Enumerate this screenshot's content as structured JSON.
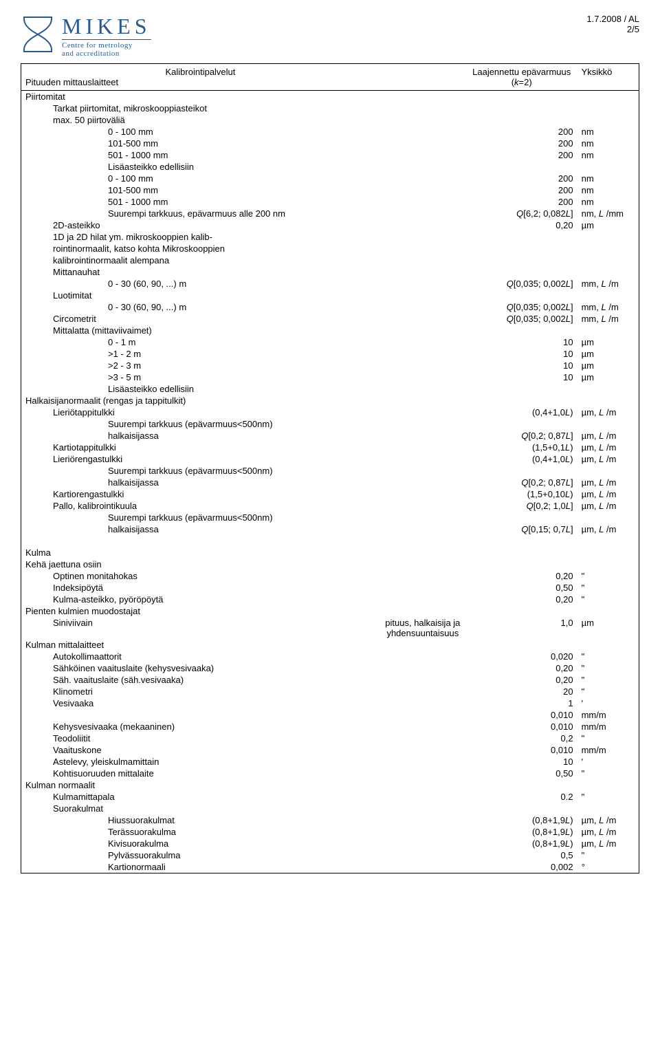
{
  "header": {
    "logo_main": "MIKES",
    "logo_sub1": "Centre for metrology",
    "logo_sub2": "and accreditation",
    "date": "1.7.2008 / AL",
    "page": "2/5"
  },
  "table_header": {
    "left_top": "Kalibrointipalvelut",
    "left_bottom": "Pituuden mittauslaitteet",
    "right_top": "Laajennettu epävarmuus",
    "right_sub": "(k=2)",
    "unit_col": "Yksikkö"
  },
  "sections": [
    {
      "type": "group",
      "text": "Piirtomitat"
    },
    {
      "type": "sub",
      "indent": 1,
      "text": "Tarkat piirtomitat, mikroskooppiasteikot"
    },
    {
      "type": "sub",
      "indent": 1,
      "text": "max. 50 piirtoväliä"
    },
    {
      "type": "row",
      "indent": 3,
      "desc": "0 - 100 mm",
      "val": "200",
      "unit": "nm"
    },
    {
      "type": "row",
      "indent": 3,
      "desc": "101-500 mm",
      "val": "200",
      "unit": "nm"
    },
    {
      "type": "row",
      "indent": 3,
      "desc": "501 - 1000 mm",
      "val": "200",
      "unit": "nm"
    },
    {
      "type": "sub",
      "indent": 3,
      "text": "Lisäasteikko edellisiin"
    },
    {
      "type": "row",
      "indent": 3,
      "desc": "0 - 100 mm",
      "val": "200",
      "unit": "nm"
    },
    {
      "type": "row",
      "indent": 3,
      "desc": "101-500 mm",
      "val": "200",
      "unit": "nm"
    },
    {
      "type": "row",
      "indent": 3,
      "desc": "501 - 1000 mm",
      "val": "200",
      "unit": "nm"
    },
    {
      "type": "row",
      "indent": 3,
      "desc": "Suurempi tarkkuus, epävarmuus alle 200 nm",
      "val": "Q[6,2; 0,082L]",
      "unit": "nm, L /mm",
      "ital": true
    },
    {
      "type": "row",
      "indent": 1,
      "desc": "2D-asteikko",
      "val": "0,20",
      "unit": "µm"
    },
    {
      "type": "sub",
      "indent": 1,
      "text": "1D ja 2D hilat ym. mikroskooppien kalib-"
    },
    {
      "type": "sub",
      "indent": 1,
      "text": "rointinormaalit, katso kohta Mikroskooppien"
    },
    {
      "type": "sub",
      "indent": 1,
      "text": "kalibrointinormaalit alempana"
    },
    {
      "type": "sub",
      "indent": 1,
      "text": "Mittanauhat"
    },
    {
      "type": "row",
      "indent": 3,
      "desc": "0 - 30 (60, 90, ...) m",
      "val": "Q[0,035; 0,002L]",
      "unit": "mm, L /m",
      "ital": true
    },
    {
      "type": "sub",
      "indent": 1,
      "text": "Luotimitat"
    },
    {
      "type": "row",
      "indent": 3,
      "desc": "0 - 30 (60, 90, ...) m",
      "val": "Q[0,035; 0,002L]",
      "unit": "mm, L /m",
      "ital": true
    },
    {
      "type": "row",
      "indent": 1,
      "desc": "Circometrit",
      "val": "Q[0,035; 0,002L]",
      "unit": "mm, L /m",
      "ital": true
    },
    {
      "type": "sub",
      "indent": 1,
      "text": "Mittalatta (mittaviivaimet)"
    },
    {
      "type": "row",
      "indent": 3,
      "desc": "0 - 1 m",
      "val": "10",
      "unit": "µm"
    },
    {
      "type": "row",
      "indent": 3,
      "desc": ">1 - 2 m",
      "val": "10",
      "unit": "µm"
    },
    {
      "type": "row",
      "indent": 3,
      "desc": ">2 - 3 m",
      "val": "10",
      "unit": "µm"
    },
    {
      "type": "row",
      "indent": 3,
      "desc": ">3 - 5 m",
      "val": "10",
      "unit": "µm"
    },
    {
      "type": "sub",
      "indent": 3,
      "text": "Lisäasteikko edellisiin"
    },
    {
      "type": "group",
      "text": "Halkaisijanormaalit (rengas ja tappitulkit)"
    },
    {
      "type": "row",
      "indent": 1,
      "desc": "Lieriötappitulkki",
      "val": "(0,4+1,0L)",
      "unit": "µm, L /m",
      "ital": true
    },
    {
      "type": "sub",
      "indent": 3,
      "text": "Suurempi tarkkuus (epävarmuus<500nm)"
    },
    {
      "type": "row",
      "indent": 3,
      "desc": "halkaisijassa",
      "val": "Q[0,2; 0,87L]",
      "unit": "µm, L /m",
      "ital": true
    },
    {
      "type": "row",
      "indent": 1,
      "desc": "Kartiotappitulkki",
      "val": "(1,5+0,1L)",
      "unit": "µm, L /m",
      "ital": true
    },
    {
      "type": "row",
      "indent": 1,
      "desc": "Lieriörengastulkki",
      "val": "(0,4+1,0L)",
      "unit": "µm, L /m",
      "ital": true
    },
    {
      "type": "sub",
      "indent": 3,
      "text": "Suurempi tarkkuus (epävarmuus<500nm)"
    },
    {
      "type": "row",
      "indent": 3,
      "desc": "halkaisijassa",
      "val": "Q[0,2; 0,87L]",
      "unit": "µm, L /m",
      "ital": true
    },
    {
      "type": "row",
      "indent": 1,
      "desc": "Kartiorengastulkki",
      "val": "(1,5+0,10L)",
      "unit": "µm, L /m",
      "ital": true
    },
    {
      "type": "row",
      "indent": 1,
      "desc": "Pallo, kalibrointikuula",
      "val": "Q[0,2; 1,0L]",
      "unit": "µm, L /m",
      "ital": true
    },
    {
      "type": "sub",
      "indent": 3,
      "text": "Suurempi tarkkuus (epävarmuus<500nm)"
    },
    {
      "type": "row",
      "indent": 3,
      "desc": "halkaisijassa",
      "val": "Q[0,15; 0,7L]",
      "unit": "µm, L /m",
      "ital": true
    },
    {
      "type": "spacer"
    },
    {
      "type": "group",
      "text": "Kulma"
    },
    {
      "type": "group",
      "text": "Kehä jaettuna osiin"
    },
    {
      "type": "row",
      "indent": 1,
      "desc": "Optinen monitahokas",
      "val": "0,20",
      "unit": "\""
    },
    {
      "type": "row",
      "indent": 1,
      "desc": "Indeksipöytä",
      "val": "0,50",
      "unit": "\""
    },
    {
      "type": "row",
      "indent": 1,
      "desc": "Kulma-asteikko, pyöröpöytä",
      "val": "0,20",
      "unit": "\""
    },
    {
      "type": "group",
      "text": "Pienten kulmien muodostajat"
    },
    {
      "type": "row",
      "indent": 1,
      "desc": "Siniviivain",
      "note": "pituus, halkaisija ja yhdensuuntaisuus",
      "val": "1,0",
      "unit": "µm"
    },
    {
      "type": "group",
      "text": "Kulman mittalaitteet"
    },
    {
      "type": "row",
      "indent": 1,
      "desc": "Autokollimaattorit",
      "val": "0,020",
      "unit": "\""
    },
    {
      "type": "row",
      "indent": 1,
      "desc": "Sähköinen vaaituslaite (kehysvesivaaka)",
      "val": "0,20",
      "unit": "\""
    },
    {
      "type": "row",
      "indent": 1,
      "desc": "Säh. vaaituslaite (säh.vesivaaka)",
      "val": "0,20",
      "unit": "\""
    },
    {
      "type": "row",
      "indent": 1,
      "desc": "Klinometri",
      "val": "20",
      "unit": "\""
    },
    {
      "type": "row",
      "indent": 1,
      "desc": "Vesivaaka",
      "val": "1",
      "unit": "'"
    },
    {
      "type": "row",
      "indent": 1,
      "desc": "",
      "val": "0,010",
      "unit": "mm/m"
    },
    {
      "type": "row",
      "indent": 1,
      "desc": "Kehysvesivaaka (mekaaninen)",
      "val": "0,010",
      "unit": "mm/m"
    },
    {
      "type": "row",
      "indent": 1,
      "desc": "Teodoliitit",
      "val": "0,2",
      "unit": "\""
    },
    {
      "type": "row",
      "indent": 1,
      "desc": "Vaaituskone",
      "val": "0,010",
      "unit": "mm/m"
    },
    {
      "type": "row",
      "indent": 1,
      "desc": "Astelevy, yleiskulmamittain",
      "val": "10",
      "unit": "'"
    },
    {
      "type": "row",
      "indent": 1,
      "desc": "Kohtisuoruuden mittalaite",
      "val": "0,50",
      "unit": "\""
    },
    {
      "type": "group",
      "text": "Kulman normaalit"
    },
    {
      "type": "row",
      "indent": 1,
      "desc": "Kulmamittapala",
      "val": "0.2",
      "unit": "\""
    },
    {
      "type": "sub",
      "indent": 1,
      "text": "Suorakulmat"
    },
    {
      "type": "row",
      "indent": 3,
      "desc": "Hiussuorakulmat",
      "val": "(0,8+1,9L)",
      "unit": "µm, L /m",
      "ital": true
    },
    {
      "type": "row",
      "indent": 3,
      "desc": "Terässuorakulma",
      "val": "(0,8+1,9L)",
      "unit": "µm, L /m",
      "ital": true
    },
    {
      "type": "row",
      "indent": 3,
      "desc": "Kivisuorakulma",
      "val": "(0,8+1,9L)",
      "unit": "µm, L /m",
      "ital": true
    },
    {
      "type": "row",
      "indent": 3,
      "desc": "Pylvässuorakulma",
      "val": "0,5",
      "unit": "\""
    },
    {
      "type": "row",
      "indent": 3,
      "desc": "Kartionormaali",
      "val": "0,002",
      "unit": "°"
    }
  ]
}
